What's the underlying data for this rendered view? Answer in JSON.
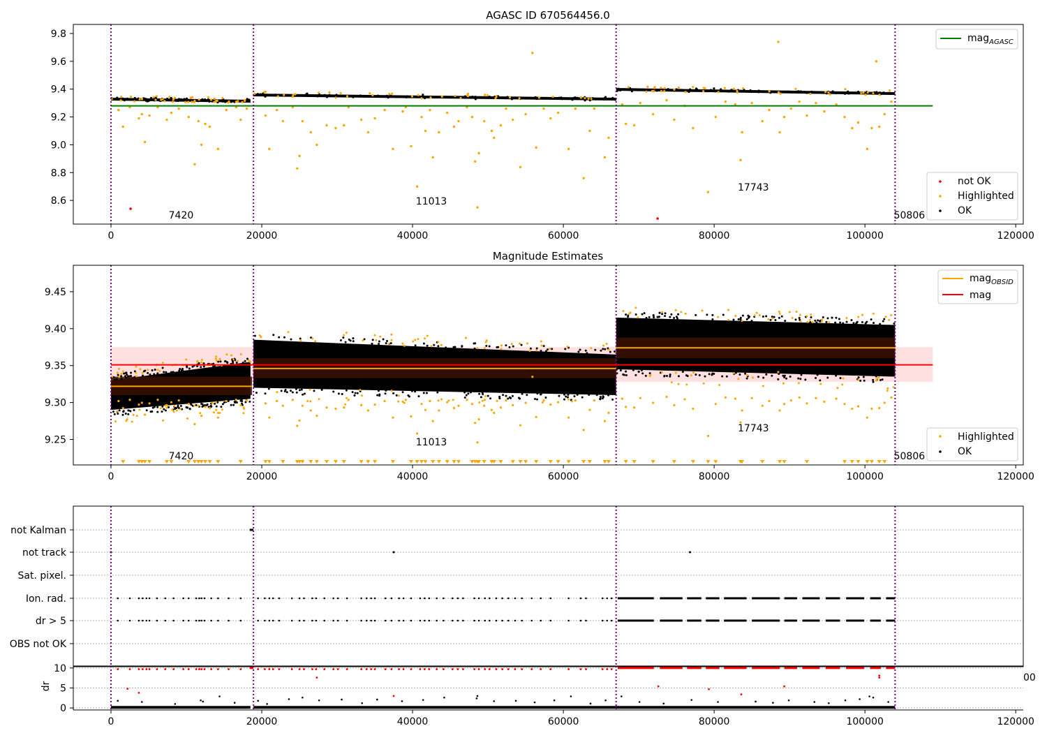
{
  "chart_data": [
    {
      "id": "top",
      "type": "scatter",
      "title": "AGASC ID 670564456.0",
      "xlim": [
        -5000,
        121000
      ],
      "ylim": [
        8.43,
        9.865
      ],
      "xticks": [
        0,
        20000,
        40000,
        60000,
        80000,
        100000,
        120000
      ],
      "yticks": [
        8.6,
        8.8,
        9.0,
        9.2,
        9.4,
        9.6,
        9.8
      ],
      "xtick_labels": [
        "0",
        "20000",
        "40000",
        "60000",
        "80000",
        "100000",
        "120000"
      ],
      "ytick_labels": [
        "8.6",
        "8.8",
        "9.0",
        "9.2",
        "9.4",
        "9.6",
        "9.8"
      ],
      "obsid_boundaries": [
        0,
        18900,
        67000,
        104000
      ],
      "agasc_mag": 9.28,
      "hline_extent": [
        0,
        109000
      ],
      "obsid_annotations": [
        {
          "x": 9300,
          "y": 8.47,
          "text": "7420"
        },
        {
          "x": 42500,
          "y": 8.57,
          "text": "11013"
        },
        {
          "x": 85200,
          "y": 8.67,
          "text": "17743"
        },
        {
          "x": 105900,
          "y": 8.47,
          "text": "50806"
        }
      ],
      "ok_bands": [
        {
          "x0": 0,
          "x1": 18500,
          "y0": 9.33,
          "y1": 9.315
        },
        {
          "x0": 18900,
          "x1": 67000,
          "y0": 9.36,
          "y1": 9.33
        },
        {
          "x0": 67000,
          "x1": 104000,
          "y0": 9.4,
          "y1": 9.37
        }
      ],
      "not_ok": [
        [
          2600,
          8.54
        ],
        [
          72500,
          8.47
        ]
      ],
      "highlighted": [
        [
          1000,
          9.25
        ],
        [
          1600,
          9.13
        ],
        [
          2500,
          9.27
        ],
        [
          3700,
          9.19
        ],
        [
          4100,
          9.22
        ],
        [
          4500,
          9.02
        ],
        [
          5100,
          9.21
        ],
        [
          6200,
          9.27
        ],
        [
          7400,
          9.18
        ],
        [
          8000,
          9.23
        ],
        [
          9000,
          9.26
        ],
        [
          10300,
          9.2
        ],
        [
          11100,
          8.86
        ],
        [
          11600,
          9.17
        ],
        [
          12000,
          9.0
        ],
        [
          12500,
          9.15
        ],
        [
          13100,
          9.13
        ],
        [
          14200,
          8.97
        ],
        [
          15300,
          9.25
        ],
        [
          16600,
          9.27
        ],
        [
          17200,
          9.18
        ],
        [
          18000,
          9.26
        ],
        [
          20500,
          9.21
        ],
        [
          21000,
          8.97
        ],
        [
          22000,
          9.25
        ],
        [
          22800,
          9.17
        ],
        [
          24100,
          9.27
        ],
        [
          24700,
          8.83
        ],
        [
          25000,
          8.92
        ],
        [
          25400,
          9.17
        ],
        [
          26500,
          9.09
        ],
        [
          27300,
          9.0
        ],
        [
          28600,
          9.14
        ],
        [
          29800,
          9.12
        ],
        [
          30900,
          9.14
        ],
        [
          31500,
          9.27
        ],
        [
          33200,
          9.18
        ],
        [
          34100,
          9.09
        ],
        [
          35000,
          9.19
        ],
        [
          36300,
          9.25
        ],
        [
          37400,
          8.97
        ],
        [
          38700,
          9.24
        ],
        [
          39100,
          9.27
        ],
        [
          39800,
          8.99
        ],
        [
          40600,
          8.7
        ],
        [
          41200,
          9.2
        ],
        [
          41700,
          9.1
        ],
        [
          42300,
          9.25
        ],
        [
          42700,
          8.91
        ],
        [
          43500,
          9.09
        ],
        [
          44600,
          9.23
        ],
        [
          45500,
          9.13
        ],
        [
          46100,
          9.17
        ],
        [
          47200,
          9.27
        ],
        [
          47900,
          9.2
        ],
        [
          48300,
          8.88
        ],
        [
          48600,
          8.55
        ],
        [
          48800,
          8.94
        ],
        [
          49500,
          9.17
        ],
        [
          50500,
          9.1
        ],
        [
          50800,
          9.05
        ],
        [
          51700,
          9.14
        ],
        [
          52400,
          9.26
        ],
        [
          53300,
          9.18
        ],
        [
          54300,
          8.84
        ],
        [
          55000,
          9.22
        ],
        [
          55900,
          9.66
        ],
        [
          56400,
          8.98
        ],
        [
          57400,
          9.26
        ],
        [
          58300,
          9.19
        ],
        [
          59300,
          9.23
        ],
        [
          60700,
          8.97
        ],
        [
          61600,
          9.26
        ],
        [
          62700,
          8.76
        ],
        [
          63500,
          9.1
        ],
        [
          64100,
          9.26
        ],
        [
          65500,
          8.91
        ],
        [
          66000,
          9.05
        ],
        [
          67800,
          9.29
        ],
        [
          68300,
          9.15
        ],
        [
          69400,
          9.14
        ],
        [
          70200,
          9.3
        ],
        [
          71900,
          9.22
        ],
        [
          73700,
          9.32
        ],
        [
          74700,
          9.18
        ],
        [
          76100,
          9.28
        ],
        [
          77200,
          9.12
        ],
        [
          79200,
          8.66
        ],
        [
          80200,
          9.2
        ],
        [
          81500,
          9.31
        ],
        [
          82800,
          9.29
        ],
        [
          83500,
          8.89
        ],
        [
          83700,
          9.09
        ],
        [
          85000,
          9.3
        ],
        [
          86400,
          9.17
        ],
        [
          87300,
          9.25
        ],
        [
          88500,
          9.74
        ],
        [
          88700,
          9.09
        ],
        [
          89300,
          9.2
        ],
        [
          90200,
          9.26
        ],
        [
          91300,
          9.31
        ],
        [
          92300,
          9.21
        ],
        [
          93500,
          9.3
        ],
        [
          94600,
          9.24
        ],
        [
          96200,
          9.29
        ],
        [
          97300,
          9.2
        ],
        [
          98300,
          9.12
        ],
        [
          99100,
          9.16
        ],
        [
          100300,
          8.97
        ],
        [
          100900,
          9.12
        ],
        [
          101500,
          9.6
        ],
        [
          101900,
          9.13
        ],
        [
          102600,
          9.22
        ],
        [
          103500,
          9.31
        ]
      ],
      "legend_top": {
        "position": "upper right",
        "entries": [
          {
            "label_main": "mag",
            "label_sub": "AGASC",
            "color": "#008000"
          }
        ]
      },
      "legend_bottom": {
        "position": "lower right",
        "entries": [
          {
            "label": "not OK",
            "color": "#ff0000"
          },
          {
            "label": "Highlighted",
            "color": "#ffa500"
          },
          {
            "label": "OK",
            "color": "#000000"
          }
        ]
      }
    },
    {
      "id": "mid",
      "type": "scatter",
      "title": "Magnitude Estimates",
      "xlim": [
        -5000,
        121000
      ],
      "ylim": [
        9.2155,
        9.4858
      ],
      "xticks": [
        0,
        20000,
        40000,
        60000,
        80000,
        100000,
        120000
      ],
      "yticks": [
        9.25,
        9.3,
        9.35,
        9.4,
        9.45
      ],
      "xtick_labels": [
        "0",
        "20000",
        "40000",
        "60000",
        "80000",
        "100000",
        "120000"
      ],
      "ytick_labels": [
        "9.25",
        "9.30",
        "9.35",
        "9.40",
        "9.45"
      ],
      "obsid_boundaries": [
        0,
        18900,
        67000,
        104000
      ],
      "mag": 9.351,
      "mag_band": [
        9.328,
        9.375
      ],
      "mag_extent": [
        0,
        109000
      ],
      "obsid_mag": [
        {
          "x0": 0,
          "x1": 18700,
          "mag": 9.322,
          "lo": 9.31,
          "hi": 9.335
        },
        {
          "x0": 18900,
          "x1": 67000,
          "mag": 9.346,
          "lo": 9.333,
          "hi": 9.36
        },
        {
          "x0": 67000,
          "x1": 104000,
          "mag": 9.374,
          "lo": 9.36,
          "hi": 9.388
        }
      ],
      "ok_bands": [
        {
          "x0": 0,
          "x1": 18500,
          "top0": 9.33,
          "top1": 9.355,
          "bot0": 9.29,
          "bot1": 9.305
        },
        {
          "x0": 18900,
          "x1": 67000,
          "top0": 9.385,
          "top1": 9.365,
          "bot0": 9.32,
          "bot1": 9.31
        },
        {
          "x0": 67000,
          "x1": 104000,
          "top0": 9.415,
          "top1": 9.405,
          "bot0": 9.345,
          "bot1": 9.335
        }
      ],
      "obsid_annotations": [
        {
          "x": 9300,
          "y": 9.223,
          "text": "7420"
        },
        {
          "x": 42500,
          "y": 9.242,
          "text": "11013"
        },
        {
          "x": 85200,
          "y": 9.261,
          "text": "17743"
        },
        {
          "x": 105900,
          "y": 9.223,
          "text": "50806"
        }
      ],
      "legend_top": {
        "position": "upper right",
        "entries": [
          {
            "label_main": "mag",
            "label_sub": "OBSID",
            "color": "#ffa500"
          },
          {
            "label_main": "mag",
            "label_sub": "",
            "color": "#ff0000"
          }
        ]
      },
      "legend_bottom": {
        "position": "lower right",
        "entries": [
          {
            "label": "Highlighted",
            "color": "#ffa500"
          },
          {
            "label": "OK",
            "color": "#000000"
          }
        ]
      }
    },
    {
      "id": "flags",
      "type": "scatter",
      "xlim": [
        -5000,
        121000
      ],
      "categories": [
        "not Kalman",
        "not track",
        "Sat. pixel.",
        "Ion. rad.",
        "dr > 5",
        "OBS not OK"
      ],
      "obsid_boundaries": [
        0,
        18900,
        67000,
        104000
      ],
      "not_kalman": [
        [
          18400,
          18900
        ]
      ],
      "not_track_points": [
        0,
        37500,
        76800
      ],
      "flag_sparse_x": [
        900,
        2500,
        3700,
        4200,
        4700,
        5100,
        6100,
        7200,
        8300,
        9600,
        10300,
        11300,
        11700,
        12000,
        12400,
        13300,
        14200,
        15600,
        17200,
        19500,
        20400,
        21000,
        21500,
        22300,
        24000,
        25000,
        25600,
        26700,
        27200,
        28300,
        29500,
        30100,
        31300,
        33200,
        33900,
        34500,
        35000,
        36400,
        37200,
        38200,
        38800,
        39800,
        41000,
        41600,
        42200,
        43200,
        44100,
        45300,
        46000,
        46700,
        48200,
        48800,
        49600,
        50200,
        51100,
        51900,
        52700,
        53600,
        54500,
        55800,
        57000,
        58300,
        60700,
        62300,
        63000,
        65200,
        65800,
        66400
      ],
      "flag_dense_ranges": [
        [
          67200,
          72000
        ],
        [
          72800,
          75800
        ],
        [
          76400,
          78300
        ],
        [
          78900,
          80700
        ],
        [
          81300,
          84300
        ],
        [
          85000,
          88700
        ],
        [
          89300,
          91000
        ],
        [
          91700,
          94000
        ],
        [
          94800,
          96700
        ],
        [
          97500,
          99900
        ],
        [
          100700,
          102100
        ],
        [
          102800,
          104000
        ]
      ]
    },
    {
      "id": "dr",
      "type": "scatter",
      "ylabel": "dr",
      "xlim": [
        -5000,
        121000
      ],
      "ylim": [
        -0.5,
        10.5
      ],
      "yticks": [
        0,
        5,
        10
      ],
      "ytick_labels": [
        "0",
        "5",
        "10"
      ],
      "xticks": [
        0,
        20000,
        40000,
        60000,
        80000,
        100000,
        120000
      ],
      "xtick_labels": [
        "0",
        "20000",
        "40000",
        "60000",
        "80000",
        "100000",
        "120000"
      ],
      "overflow_tick_label": "00",
      "obsid_boundaries": [
        0,
        18900,
        67000,
        104000
      ],
      "red_points": [
        [
          2200,
          4.8
        ],
        [
          3700,
          3.8
        ],
        [
          27300,
          7.6
        ],
        [
          37500,
          3.0
        ],
        [
          72600,
          5.4
        ],
        [
          79300,
          4.7
        ],
        [
          83600,
          3.4
        ],
        [
          89300,
          5.4
        ],
        [
          101900,
          8.1
        ],
        [
          101900,
          7.6
        ]
      ],
      "black_outliers": [
        [
          900,
          1.8
        ],
        [
          4100,
          1.5
        ],
        [
          8500,
          1.0
        ],
        [
          11900,
          1.9
        ],
        [
          12200,
          1.6
        ],
        [
          14400,
          2.9
        ],
        [
          16400,
          1.3
        ],
        [
          19500,
          1.8
        ],
        [
          20700,
          1.0
        ],
        [
          23600,
          2.2
        ],
        [
          25400,
          2.6
        ],
        [
          27600,
          1.9
        ],
        [
          30600,
          2.1
        ],
        [
          33300,
          1.2
        ],
        [
          35300,
          2.1
        ],
        [
          38600,
          1.7
        ],
        [
          41400,
          2.0
        ],
        [
          44200,
          2.6
        ],
        [
          48500,
          2.4
        ],
        [
          48600,
          3.0
        ],
        [
          50800,
          1.7
        ],
        [
          53700,
          1.8
        ],
        [
          56200,
          1.4
        ],
        [
          58800,
          1.9
        ],
        [
          61000,
          2.9
        ],
        [
          63600,
          1.1
        ],
        [
          65600,
          1.9
        ],
        [
          67700,
          2.9
        ],
        [
          70100,
          1.5
        ],
        [
          73300,
          1.1
        ],
        [
          77000,
          2.0
        ],
        [
          80500,
          1.5
        ],
        [
          85500,
          1.6
        ],
        [
          87800,
          1.3
        ],
        [
          89900,
          1.9
        ],
        [
          93300,
          1.5
        ],
        [
          95200,
          1.2
        ],
        [
          97400,
          1.9
        ],
        [
          99300,
          2.2
        ],
        [
          100600,
          2.9
        ],
        [
          101100,
          2.6
        ],
        [
          103100,
          1.5
        ]
      ]
    }
  ]
}
